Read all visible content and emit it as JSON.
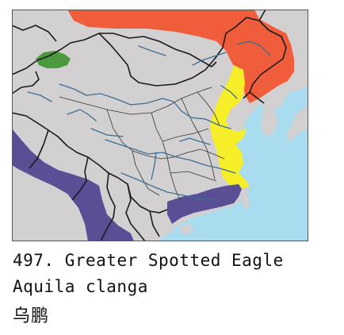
{
  "caption": {
    "species_number": "497.",
    "common_name": "Greater Spotted Eagle",
    "scientific_name": "Aquila clanga",
    "chinese_name": "乌鹏"
  },
  "map": {
    "colors": {
      "sea": "#a9dcef",
      "land": "#d3d0d1",
      "border": "#1a1a1a",
      "river": "#3a6f96",
      "frame": "#555555"
    },
    "range_layers": [
      {
        "name": "breeding-range",
        "color": "#f05d3b"
      },
      {
        "name": "passage-range",
        "color": "#f7ee2a"
      },
      {
        "name": "wintering-range",
        "color": "#5a4f95"
      },
      {
        "name": "resident-range",
        "color": "#4c9a3e"
      }
    ]
  }
}
